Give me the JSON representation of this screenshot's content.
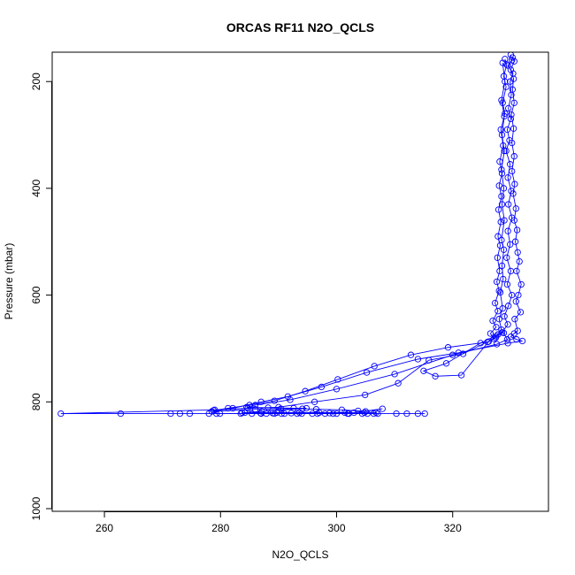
{
  "chart_data": {
    "type": "scatter",
    "title": "ORCAS RF11 N2O_QCLS",
    "xlabel": "N2O_QCLS",
    "ylabel": "Pressure (mbar)",
    "xlim": [
      251,
      336.5
    ],
    "ylim": [
      1005,
      145
    ],
    "y_reversed": true,
    "xticks": [
      260,
      280,
      300,
      320
    ],
    "yticks": [
      200,
      400,
      600,
      800,
      1000
    ],
    "grid": false,
    "connected": true,
    "marker": "open-circle",
    "color": "#0000ff",
    "series": [
      {
        "values": [
          [
            330.0,
            150
          ],
          [
            330.2,
            160
          ],
          [
            329.5,
            170
          ],
          [
            330.4,
            185
          ],
          [
            329.9,
            200
          ],
          [
            330.1,
            225
          ],
          [
            329.6,
            250
          ],
          [
            330.0,
            270
          ],
          [
            329.4,
            290
          ],
          [
            329.8,
            310
          ],
          [
            329.2,
            330
          ],
          [
            329.9,
            355
          ],
          [
            329.5,
            380
          ],
          [
            330.1,
            405
          ],
          [
            329.6,
            430
          ],
          [
            330.2,
            455
          ],
          [
            329.5,
            480
          ],
          [
            329.9,
            505
          ],
          [
            329.3,
            530
          ],
          [
            330.0,
            555
          ],
          [
            329.4,
            580
          ],
          [
            330.2,
            600
          ],
          [
            329.6,
            620
          ],
          [
            328.9,
            640
          ],
          [
            329.5,
            655
          ],
          [
            328.5,
            670
          ],
          [
            327.4,
            680
          ],
          [
            321.8,
            710
          ],
          [
            315.9,
            722
          ],
          [
            310.6,
            765
          ],
          [
            304.9,
            787
          ],
          [
            296.2,
            800
          ],
          [
            290.0,
            810
          ],
          [
            284.7,
            812
          ],
          [
            279.0,
            815
          ],
          [
            252.5,
            822
          ],
          [
            262.8,
            822
          ],
          [
            271.4,
            822
          ],
          [
            273.0,
            822
          ],
          [
            274.7,
            822
          ],
          [
            278.0,
            822
          ],
          [
            279.9,
            822
          ],
          [
            283.5,
            822
          ],
          [
            287.0,
            822
          ],
          [
            289.3,
            822
          ],
          [
            290.5,
            822
          ],
          [
            293.2,
            822
          ],
          [
            295.8,
            822
          ],
          [
            298.0,
            822
          ],
          [
            300.0,
            822
          ],
          [
            302.1,
            822
          ],
          [
            304.4,
            822
          ],
          [
            306.4,
            822
          ],
          [
            310.3,
            822
          ],
          [
            312.1,
            822
          ],
          [
            314.0,
            822
          ],
          [
            315.2,
            822
          ]
        ]
      },
      {
        "values": [
          [
            330.3,
            155
          ],
          [
            330.6,
            162
          ],
          [
            330.0,
            178
          ],
          [
            330.5,
            195
          ],
          [
            330.3,
            215
          ],
          [
            330.6,
            240
          ],
          [
            330.1,
            262
          ],
          [
            330.5,
            288
          ],
          [
            330.2,
            315
          ],
          [
            330.6,
            340
          ],
          [
            330.2,
            368
          ],
          [
            330.7,
            392
          ],
          [
            330.4,
            410
          ],
          [
            330.9,
            438
          ],
          [
            330.6,
            460
          ],
          [
            331.1,
            478
          ],
          [
            330.8,
            500
          ],
          [
            331.2,
            520
          ],
          [
            331.5,
            537
          ],
          [
            331.0,
            555
          ],
          [
            331.8,
            580
          ],
          [
            331.3,
            600
          ],
          [
            330.9,
            612
          ],
          [
            331.7,
            632
          ],
          [
            330.7,
            645
          ],
          [
            331.2,
            667
          ],
          [
            330.6,
            672
          ],
          [
            330.0,
            678
          ],
          [
            331.0,
            683
          ],
          [
            332.0,
            686
          ],
          [
            329.5,
            690
          ],
          [
            321.0,
            708
          ],
          [
            314.0,
            720
          ],
          [
            305.2,
            745
          ],
          [
            297.4,
            772
          ],
          [
            291.6,
            790
          ],
          [
            287.0,
            800
          ],
          [
            282.1,
            812
          ],
          [
            278.5,
            818
          ],
          [
            286.0,
            814
          ],
          [
            290.4,
            813
          ],
          [
            294.1,
            813
          ],
          [
            296.5,
            814
          ],
          [
            300.9,
            815
          ],
          [
            303.7,
            817
          ],
          [
            305.0,
            818
          ],
          [
            307.9,
            813
          ],
          [
            303.0,
            820
          ],
          [
            298.8,
            821
          ],
          [
            292.2,
            821
          ],
          [
            289.0,
            821
          ],
          [
            286.9,
            821
          ],
          [
            283.7,
            820
          ]
        ]
      },
      {
        "values": [
          [
            329.0,
            158
          ],
          [
            329.3,
            168
          ],
          [
            328.8,
            190
          ],
          [
            329.2,
            210
          ],
          [
            328.6,
            240
          ],
          [
            329.0,
            260
          ],
          [
            328.3,
            290
          ],
          [
            328.7,
            320
          ],
          [
            328.1,
            350
          ],
          [
            328.5,
            372
          ],
          [
            328.0,
            395
          ],
          [
            328.4,
            415
          ],
          [
            327.9,
            440
          ],
          [
            328.3,
            463
          ],
          [
            327.8,
            490
          ],
          [
            328.2,
            507
          ],
          [
            327.7,
            530
          ],
          [
            328.1,
            555
          ],
          [
            327.6,
            575
          ],
          [
            328.0,
            592
          ],
          [
            327.3,
            615
          ],
          [
            327.8,
            630
          ],
          [
            326.9,
            648
          ],
          [
            327.5,
            660
          ],
          [
            326.5,
            672
          ],
          [
            327.1,
            682
          ],
          [
            326.0,
            688
          ],
          [
            319.2,
            698
          ],
          [
            312.8,
            712
          ],
          [
            306.5,
            733
          ],
          [
            300.2,
            758
          ],
          [
            294.6,
            780
          ],
          [
            289.3,
            798
          ],
          [
            285.0,
            806
          ],
          [
            281.3,
            812
          ],
          [
            278.8,
            816
          ],
          [
            279.3,
            822
          ],
          [
            285.4,
            822
          ],
          [
            287.9,
            822
          ],
          [
            291.0,
            822
          ],
          [
            294.0,
            822
          ],
          [
            296.7,
            822
          ],
          [
            299.4,
            822
          ],
          [
            301.9,
            822
          ],
          [
            305.3,
            822
          ],
          [
            307.1,
            822
          ]
        ]
      },
      {
        "values": [
          [
            328.6,
            165
          ],
          [
            329.0,
            200
          ],
          [
            328.4,
            235
          ],
          [
            328.9,
            265
          ],
          [
            328.5,
            300
          ],
          [
            328.9,
            330
          ],
          [
            328.4,
            365
          ],
          [
            328.8,
            400
          ],
          [
            328.5,
            430
          ],
          [
            328.9,
            460
          ],
          [
            328.4,
            497
          ],
          [
            328.8,
            515
          ],
          [
            328.5,
            545
          ],
          [
            328.7,
            570
          ],
          [
            328.2,
            595
          ],
          [
            328.6,
            625
          ],
          [
            328.0,
            645
          ],
          [
            328.4,
            665
          ],
          [
            327.5,
            677
          ],
          [
            326.2,
            687
          ],
          [
            321.5,
            750
          ],
          [
            317.0,
            752
          ],
          [
            315.0,
            742
          ],
          [
            318.9,
            728
          ],
          [
            324.8,
            690
          ],
          [
            327.8,
            674
          ],
          [
            328.8,
            671
          ],
          [
            329.4,
            683
          ],
          [
            327.6,
            692
          ],
          [
            320.0,
            712
          ],
          [
            310.0,
            748
          ],
          [
            300.0,
            776
          ],
          [
            292.0,
            796
          ],
          [
            286.0,
            806
          ],
          [
            284.5,
            810
          ],
          [
            288.2,
            811
          ],
          [
            292.6,
            812
          ],
          [
            294.8,
            812
          ],
          [
            287.1,
            818
          ],
          [
            284.2,
            820
          ],
          [
            289.7,
            820
          ],
          [
            293.6,
            820
          ],
          [
            297.0,
            820
          ],
          [
            301.4,
            820
          ],
          [
            304.8,
            820
          ],
          [
            306.8,
            820
          ]
        ]
      }
    ]
  }
}
